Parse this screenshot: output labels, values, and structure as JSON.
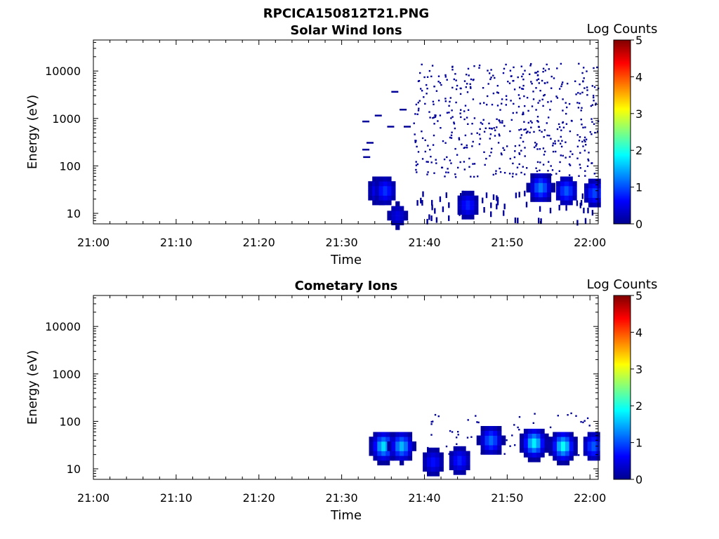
{
  "figure": {
    "title": "RPCICA150812T21.PNG"
  },
  "chart_data": [
    {
      "type": "heatmap",
      "title": "Solar Wind Ions",
      "xlabel": "Time",
      "ylabel": "Energy (eV)",
      "x_ticks": [
        "21:00",
        "21:10",
        "21:20",
        "21:30",
        "21:40",
        "21:50",
        "22:00"
      ],
      "y_ticks": [
        "10",
        "100",
        "1000",
        "10000"
      ],
      "y_scale": "log",
      "ylim": [
        6,
        45000
      ],
      "xlim_minutes": [
        0,
        61
      ],
      "colorbar": {
        "label": "Log Counts",
        "ticks": [
          "0",
          "1",
          "2",
          "3",
          "4",
          "5"
        ],
        "range": [
          0,
          5
        ],
        "colormap": "jet"
      },
      "data_start_minute": 32.5,
      "clusters": [
        {
          "t": 34.2,
          "e": 30,
          "value": 0.7
        },
        {
          "t": 35.0,
          "e": 30,
          "value": 0.9
        },
        {
          "t": 36.5,
          "e": 9,
          "value": 0.5
        },
        {
          "t": 45.0,
          "e": 15,
          "value": 0.8
        },
        {
          "t": 53.8,
          "e": 35,
          "value": 1.3
        },
        {
          "t": 56.9,
          "e": 30,
          "value": 1.1
        },
        {
          "t": 60.3,
          "e": 27,
          "value": 1.0
        }
      ]
    },
    {
      "type": "heatmap",
      "title": "Cometary Ions",
      "xlabel": "Time",
      "ylabel": "Energy (eV)",
      "x_ticks": [
        "21:00",
        "21:10",
        "21:20",
        "21:30",
        "21:40",
        "21:50",
        "22:00"
      ],
      "y_ticks": [
        "10",
        "100",
        "1000",
        "10000"
      ],
      "y_scale": "log",
      "ylim": [
        6,
        45000
      ],
      "xlim_minutes": [
        0,
        61
      ],
      "colorbar": {
        "label": "Log Counts",
        "ticks": [
          "0",
          "1",
          "2",
          "3",
          "4",
          "5"
        ],
        "range": [
          0,
          5
        ],
        "colormap": "jet"
      },
      "data_start_minute": 32.5,
      "clusters": [
        {
          "t": 34.8,
          "e": 30,
          "value": 1.8
        },
        {
          "t": 37.0,
          "e": 30,
          "value": 1.6
        },
        {
          "t": 40.8,
          "e": 14,
          "value": 0.7
        },
        {
          "t": 44.0,
          "e": 15,
          "value": 0.8
        },
        {
          "t": 47.8,
          "e": 40,
          "value": 1.2
        },
        {
          "t": 53.0,
          "e": 35,
          "value": 1.9
        },
        {
          "t": 56.5,
          "e": 30,
          "value": 2.0
        },
        {
          "t": 60.2,
          "e": 30,
          "value": 1.1
        }
      ]
    }
  ]
}
